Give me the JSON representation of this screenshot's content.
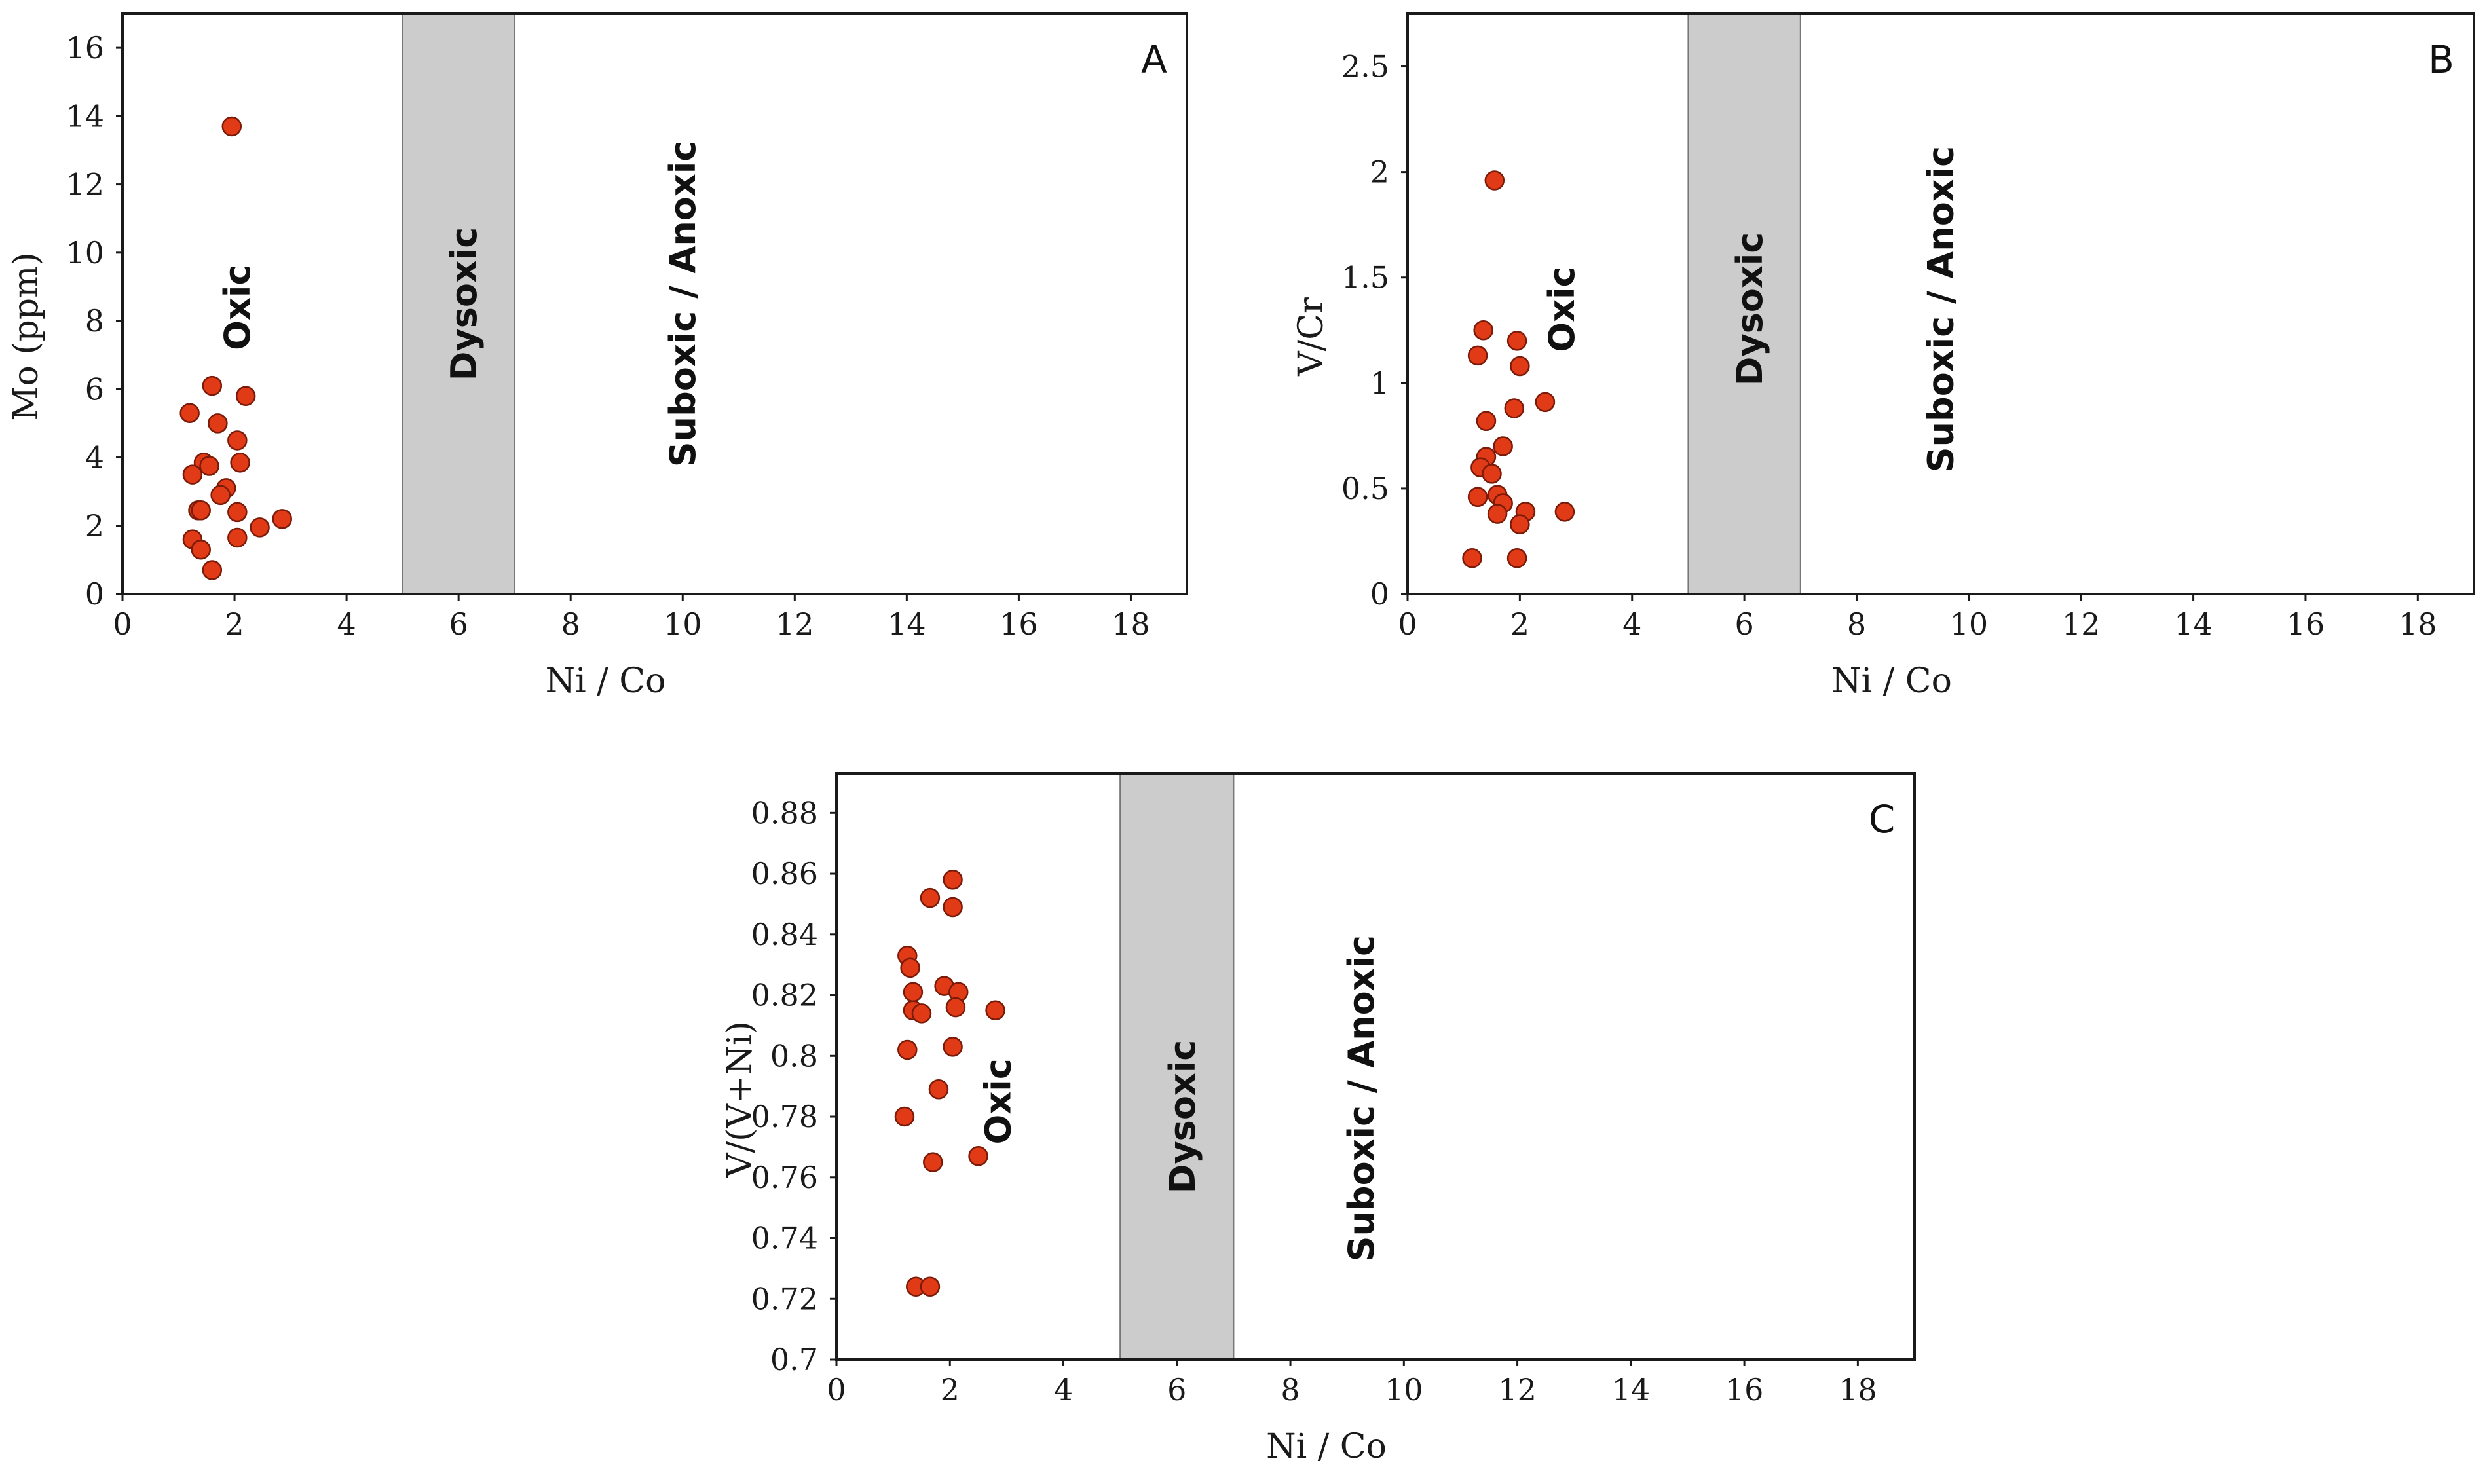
{
  "colors": {
    "marker": "#e03a16",
    "marker_edge": "#7a1a08",
    "dysoxic_band": "#cccccc",
    "frame": "#1a1a1a"
  },
  "chart_data": [
    {
      "type": "scatter",
      "panel": "A",
      "xlabel": "Ni / Co",
      "ylabel": "Mo (ppm)",
      "xlim": [
        0,
        19
      ],
      "ylim": [
        0,
        17
      ],
      "xticks": [
        0,
        2,
        4,
        6,
        8,
        10,
        12,
        14,
        16,
        18
      ],
      "yticks": [
        0,
        2,
        4,
        6,
        8,
        10,
        12,
        14,
        16
      ],
      "band": [
        5,
        7
      ],
      "zones": [
        "Oxic",
        "Dysoxic",
        "Suboxic / Anoxic"
      ],
      "zone_positions": [
        [
          2.05,
          8.4
        ],
        [
          6.1,
          8.5
        ],
        [
          10.0,
          8.5
        ]
      ],
      "points": [
        [
          1.95,
          13.7
        ],
        [
          1.6,
          6.1
        ],
        [
          2.2,
          5.8
        ],
        [
          1.2,
          5.3
        ],
        [
          1.7,
          5.0
        ],
        [
          2.05,
          4.5
        ],
        [
          1.45,
          3.85
        ],
        [
          2.1,
          3.85
        ],
        [
          1.55,
          3.75
        ],
        [
          1.25,
          3.5
        ],
        [
          1.85,
          3.1
        ],
        [
          1.75,
          2.9
        ],
        [
          1.35,
          2.45
        ],
        [
          1.4,
          2.45
        ],
        [
          2.05,
          2.4
        ],
        [
          2.85,
          2.2
        ],
        [
          2.45,
          1.95
        ],
        [
          2.05,
          1.65
        ],
        [
          1.25,
          1.6
        ],
        [
          1.4,
          1.3
        ],
        [
          1.6,
          0.7
        ]
      ]
    },
    {
      "type": "scatter",
      "panel": "B",
      "xlabel": "Ni / Co",
      "ylabel": "V/Cr",
      "xlim": [
        0,
        19
      ],
      "ylim": [
        0,
        2.75
      ],
      "xticks": [
        0,
        2,
        4,
        6,
        8,
        10,
        12,
        14,
        16,
        18
      ],
      "yticks": [
        0,
        0.5,
        1,
        1.5,
        2,
        2.5
      ],
      "band": [
        5,
        7
      ],
      "zones": [
        "Oxic",
        "Dysoxic",
        "Suboxic / Anoxic"
      ],
      "zone_positions": [
        [
          2.75,
          1.35
        ],
        [
          6.1,
          1.35
        ],
        [
          9.5,
          1.35
        ]
      ],
      "points": [
        [
          1.55,
          1.96
        ],
        [
          1.35,
          1.25
        ],
        [
          1.95,
          1.2
        ],
        [
          1.25,
          1.13
        ],
        [
          2.0,
          1.08
        ],
        [
          2.45,
          0.91
        ],
        [
          1.9,
          0.88
        ],
        [
          1.4,
          0.82
        ],
        [
          1.7,
          0.7
        ],
        [
          1.4,
          0.65
        ],
        [
          1.3,
          0.6
        ],
        [
          1.5,
          0.57
        ],
        [
          1.6,
          0.47
        ],
        [
          1.25,
          0.46
        ],
        [
          1.7,
          0.43
        ],
        [
          2.1,
          0.39
        ],
        [
          2.8,
          0.39
        ],
        [
          1.6,
          0.38
        ],
        [
          2.0,
          0.33
        ],
        [
          1.15,
          0.17
        ],
        [
          1.95,
          0.17
        ]
      ]
    },
    {
      "type": "scatter",
      "panel": "C",
      "xlabel": "Ni / Co",
      "ylabel": "V/(V+Ni)",
      "xlim": [
        0,
        19
      ],
      "ylim": [
        0.7,
        0.893
      ],
      "xticks": [
        0,
        2,
        4,
        6,
        8,
        10,
        12,
        14,
        16,
        18
      ],
      "yticks": [
        0.7,
        0.72,
        0.74,
        0.76,
        0.78,
        0.8,
        0.82,
        0.84,
        0.86,
        0.88
      ],
      "band": [
        5,
        7
      ],
      "zones": [
        "Oxic",
        "Dysoxic",
        "Suboxic / Anoxic"
      ],
      "zone_positions": [
        [
          2.85,
          0.785
        ],
        [
          6.1,
          0.78
        ],
        [
          9.25,
          0.786
        ]
      ],
      "points": [
        [
          2.05,
          0.858
        ],
        [
          1.65,
          0.852
        ],
        [
          2.05,
          0.849
        ],
        [
          1.25,
          0.833
        ],
        [
          1.3,
          0.829
        ],
        [
          1.9,
          0.823
        ],
        [
          1.35,
          0.821
        ],
        [
          2.15,
          0.821
        ],
        [
          2.1,
          0.816
        ],
        [
          2.8,
          0.815
        ],
        [
          1.35,
          0.815
        ],
        [
          1.5,
          0.814
        ],
        [
          1.25,
          0.802
        ],
        [
          2.05,
          0.803
        ],
        [
          1.8,
          0.789
        ],
        [
          1.2,
          0.78
        ],
        [
          2.5,
          0.767
        ],
        [
          1.7,
          0.765
        ],
        [
          1.4,
          0.724
        ],
        [
          1.65,
          0.724
        ]
      ]
    }
  ]
}
